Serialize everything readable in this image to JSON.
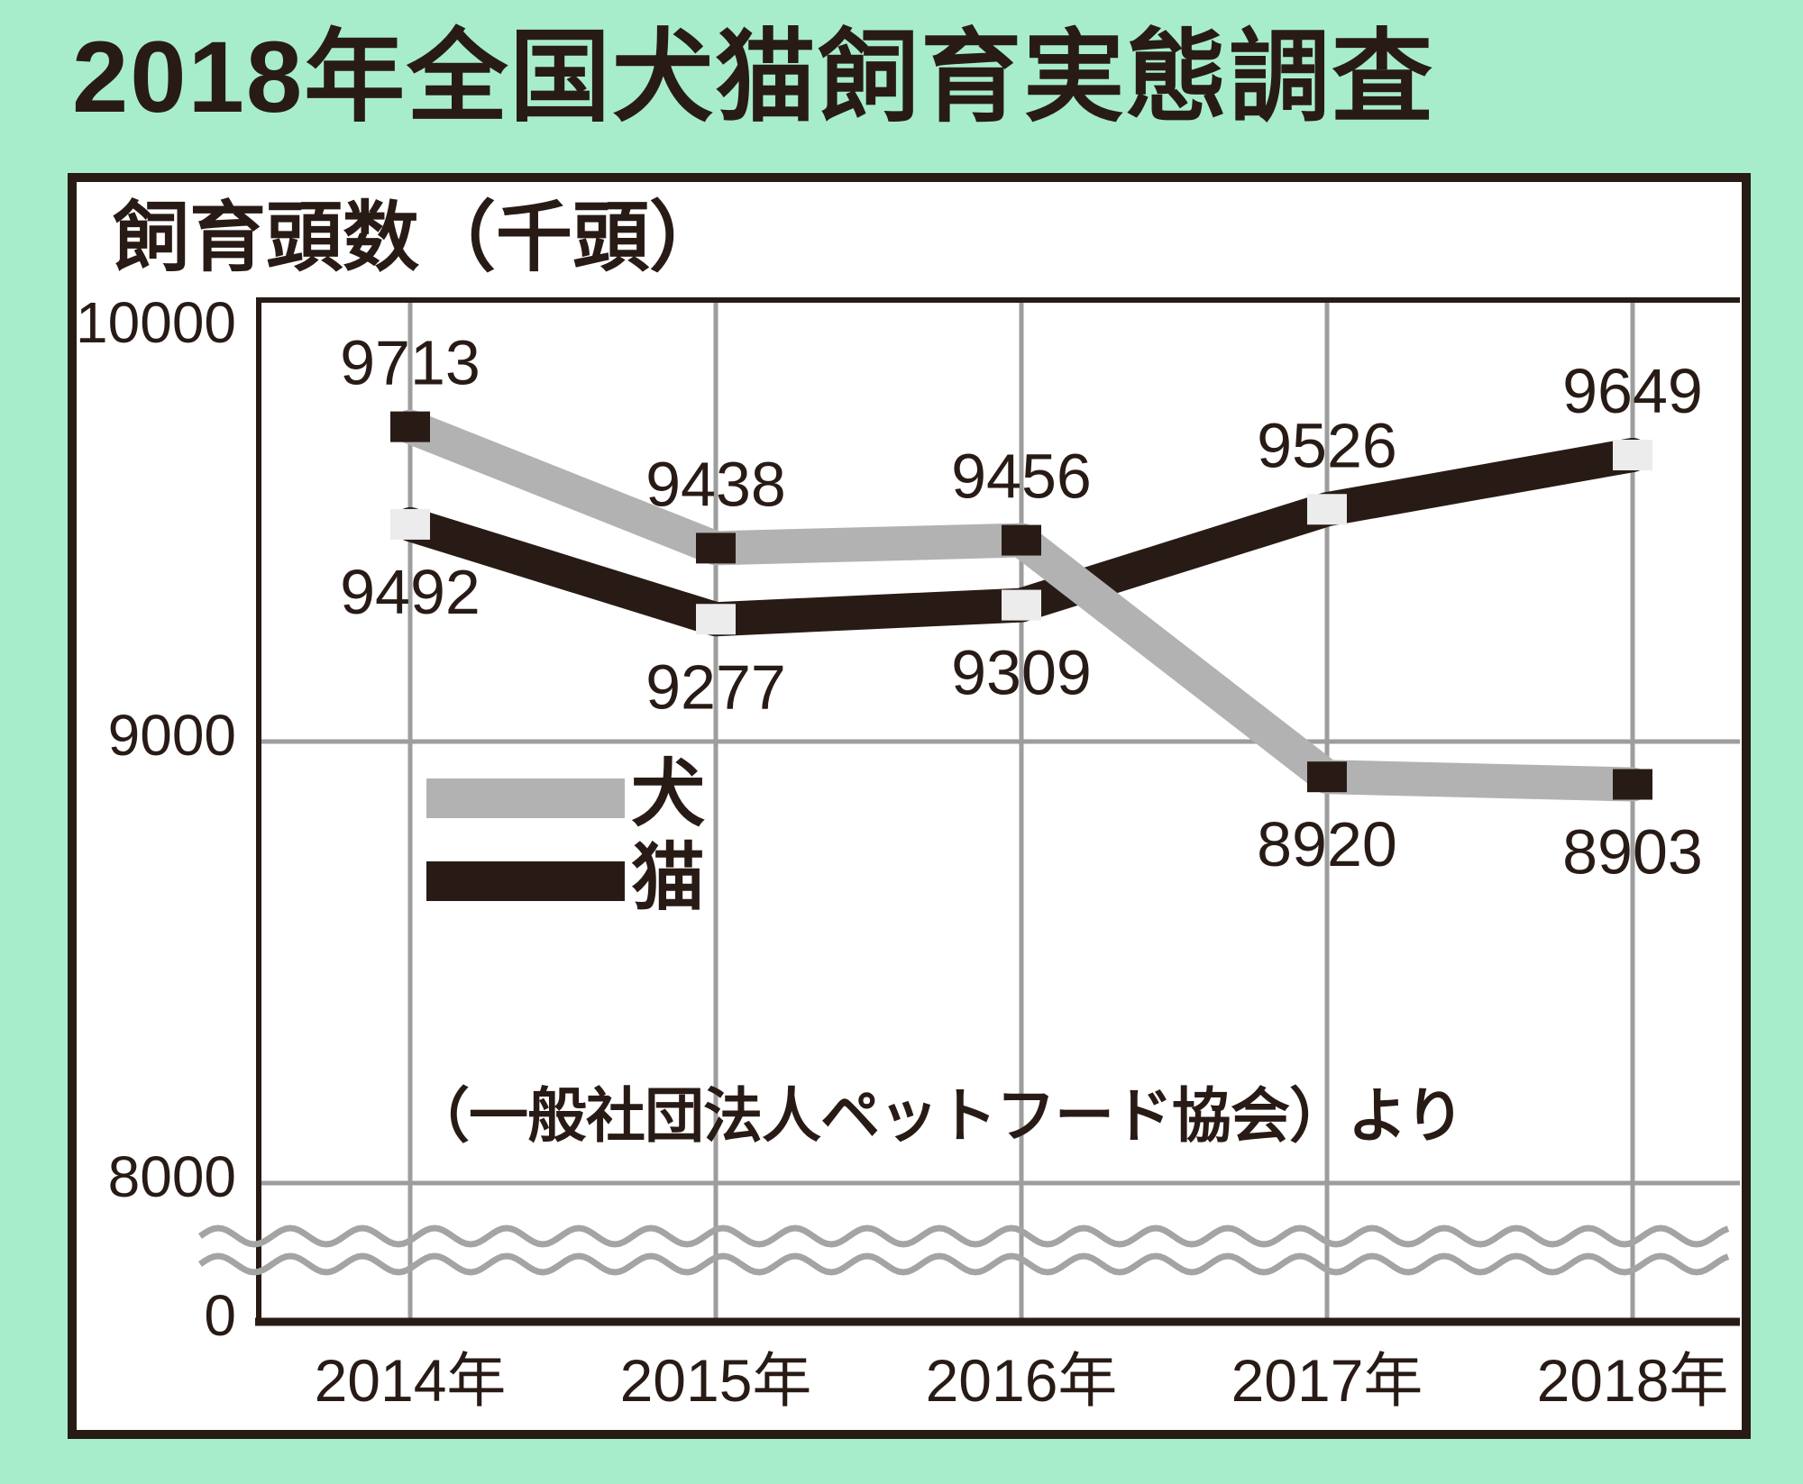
{
  "title": "2018年全国犬猫飼育実態調査",
  "colors": {
    "background": "#a8edcb",
    "ink": "#281b16",
    "panel_bg": "#ffffff",
    "dog_line": "#b2b2b2",
    "cat_line": "#281b16",
    "dog_marker": "#281b16",
    "cat_marker": "#ececec",
    "grid": "#9d9d9d",
    "wave": "#a4a4a4"
  },
  "chart_data": {
    "type": "line",
    "title": "2018年全国犬猫飼育実態調査",
    "ylabel": "飼育頭数（千頭）",
    "categories": [
      "2014年",
      "2015年",
      "2016年",
      "2017年",
      "2018年"
    ],
    "series": [
      {
        "name": "犬",
        "line_color": "#b2b2b2",
        "marker_color": "#281b16",
        "values": [
          9713,
          9438,
          9456,
          8920,
          8903
        ],
        "label_side": [
          "above",
          "above",
          "above",
          "below",
          "below"
        ]
      },
      {
        "name": "猫",
        "line_color": "#281b16",
        "marker_color": "#ececec",
        "values": [
          9492,
          9277,
          9309,
          9526,
          9649
        ],
        "label_side": [
          "below",
          "below",
          "below",
          "above",
          "above"
        ]
      }
    ],
    "yticks": [
      10000,
      9000,
      8000,
      0
    ],
    "axis_break_between": [
      8000,
      0
    ],
    "grid": true,
    "legend_position": "inside-left",
    "source": "（一般社団法人ペットフード協会）より"
  }
}
